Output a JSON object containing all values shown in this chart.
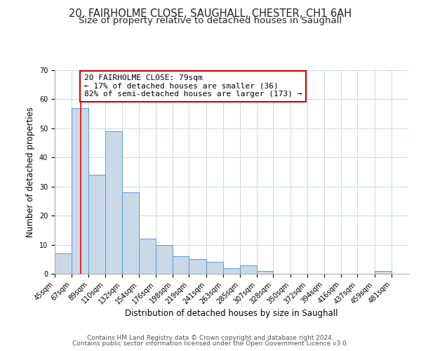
{
  "title_line1": "20, FAIRHOLME CLOSE, SAUGHALL, CHESTER, CH1 6AH",
  "title_line2": "Size of property relative to detached houses in Saughall",
  "xlabel": "Distribution of detached houses by size in Saughall",
  "ylabel": "Number of detached properties",
  "bar_left_edges": [
    45,
    67,
    89,
    110,
    132,
    154,
    176,
    198,
    219,
    241,
    263,
    285,
    307,
    328,
    350,
    372,
    394,
    416,
    437,
    459
  ],
  "bar_widths": [
    22,
    22,
    21,
    22,
    22,
    22,
    22,
    21,
    22,
    22,
    22,
    22,
    21,
    22,
    22,
    22,
    22,
    21,
    22,
    22
  ],
  "bar_heights": [
    7,
    57,
    34,
    49,
    28,
    12,
    10,
    6,
    5,
    4,
    2,
    3,
    1,
    0,
    0,
    0,
    0,
    0,
    0,
    1
  ],
  "bar_color": "#c9d9e8",
  "bar_edgecolor": "#5b9bd5",
  "x_tick_labels": [
    "45sqm",
    "67sqm",
    "89sqm",
    "110sqm",
    "132sqm",
    "154sqm",
    "176sqm",
    "198sqm",
    "219sqm",
    "241sqm",
    "263sqm",
    "285sqm",
    "307sqm",
    "328sqm",
    "350sqm",
    "372sqm",
    "394sqm",
    "416sqm",
    "437sqm",
    "459sqm",
    "481sqm"
  ],
  "x_tick_positions": [
    45,
    67,
    89,
    110,
    132,
    154,
    176,
    198,
    219,
    241,
    263,
    285,
    307,
    328,
    350,
    372,
    394,
    416,
    437,
    459,
    481
  ],
  "ylim": [
    0,
    70
  ],
  "yticks": [
    0,
    10,
    20,
    30,
    40,
    50,
    60,
    70
  ],
  "red_line_x": 79,
  "annotation_text": "20 FAIRHOLME CLOSE: 79sqm\n← 17% of detached houses are smaller (36)\n82% of semi-detached houses are larger (173) →",
  "annotation_box_edgecolor": "#cc0000",
  "footer_line1": "Contains HM Land Registry data © Crown copyright and database right 2024.",
  "footer_line2": "Contains public sector information licensed under the Open Government Licence v3.0.",
  "background_color": "#ffffff",
  "grid_color": "#c8d8e8",
  "title_fontsize": 10.5,
  "subtitle_fontsize": 9.5,
  "axis_label_fontsize": 8.5,
  "tick_fontsize": 7,
  "annotation_fontsize": 8,
  "footer_fontsize": 6.5
}
